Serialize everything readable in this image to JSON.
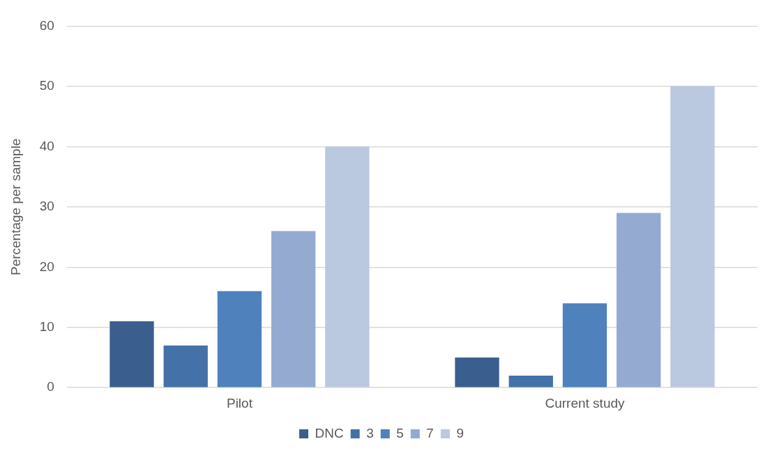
{
  "chart_data": {
    "type": "bar",
    "ylabel": "Percentage per sample",
    "categories": [
      "Pilot",
      "Current study"
    ],
    "series": [
      {
        "name": "DNC",
        "color": "#3a5f8f",
        "values": [
          11,
          5
        ]
      },
      {
        "name": "3",
        "color": "#4471a7",
        "values": [
          7,
          2
        ]
      },
      {
        "name": "5",
        "color": "#4f81bd",
        "values": [
          16,
          14
        ]
      },
      {
        "name": "7",
        "color": "#95aad1",
        "values": [
          26,
          29
        ]
      },
      {
        "name": "9",
        "color": "#bac8e0",
        "values": [
          40,
          50
        ]
      }
    ],
    "ylim": [
      0,
      60
    ],
    "yticks": [
      0,
      10,
      20,
      30,
      40,
      50,
      60
    ],
    "grid": "y",
    "legend": "bottom"
  }
}
